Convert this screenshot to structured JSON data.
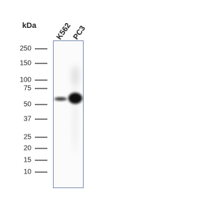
{
  "unit": "kDa",
  "lanes": [
    "K562",
    "PC3"
  ],
  "markers": [
    "250",
    "150",
    "100",
    "75",
    "50",
    "37",
    "25",
    "20",
    "15",
    "10"
  ]
}
